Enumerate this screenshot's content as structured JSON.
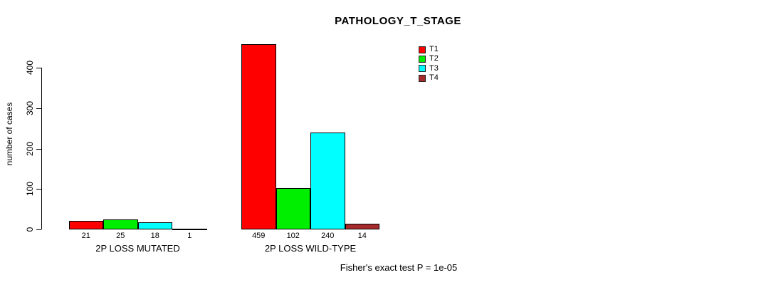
{
  "title": "PATHOLOGY_T_STAGE",
  "footer": "Fisher's exact test P = 1e-05",
  "chart_data": {
    "type": "bar",
    "title": "PATHOLOGY_T_STAGE",
    "xlabel": "",
    "ylabel": "number of cases",
    "ylim": [
      0,
      459
    ],
    "yticks": [
      0,
      100,
      200,
      300,
      400
    ],
    "grid": false,
    "legend_position": "top-right",
    "categories": [
      "2P LOSS MUTATED",
      "2P LOSS WILD-TYPE"
    ],
    "series": [
      {
        "name": "T1",
        "color": "#ff0000",
        "values": [
          21,
          459
        ]
      },
      {
        "name": "T2",
        "color": "#00ee00",
        "values": [
          25,
          102
        ]
      },
      {
        "name": "T3",
        "color": "#00ffff",
        "values": [
          18,
          240
        ]
      },
      {
        "name": "T4",
        "color": "#a52a2a",
        "values": [
          1,
          14
        ]
      }
    ],
    "bar_value_labels": [
      [
        "21",
        "25",
        "18",
        "1"
      ],
      [
        "459",
        "102",
        "240",
        "14"
      ]
    ],
    "annotation": "Fisher's exact test P = 1e-05"
  }
}
